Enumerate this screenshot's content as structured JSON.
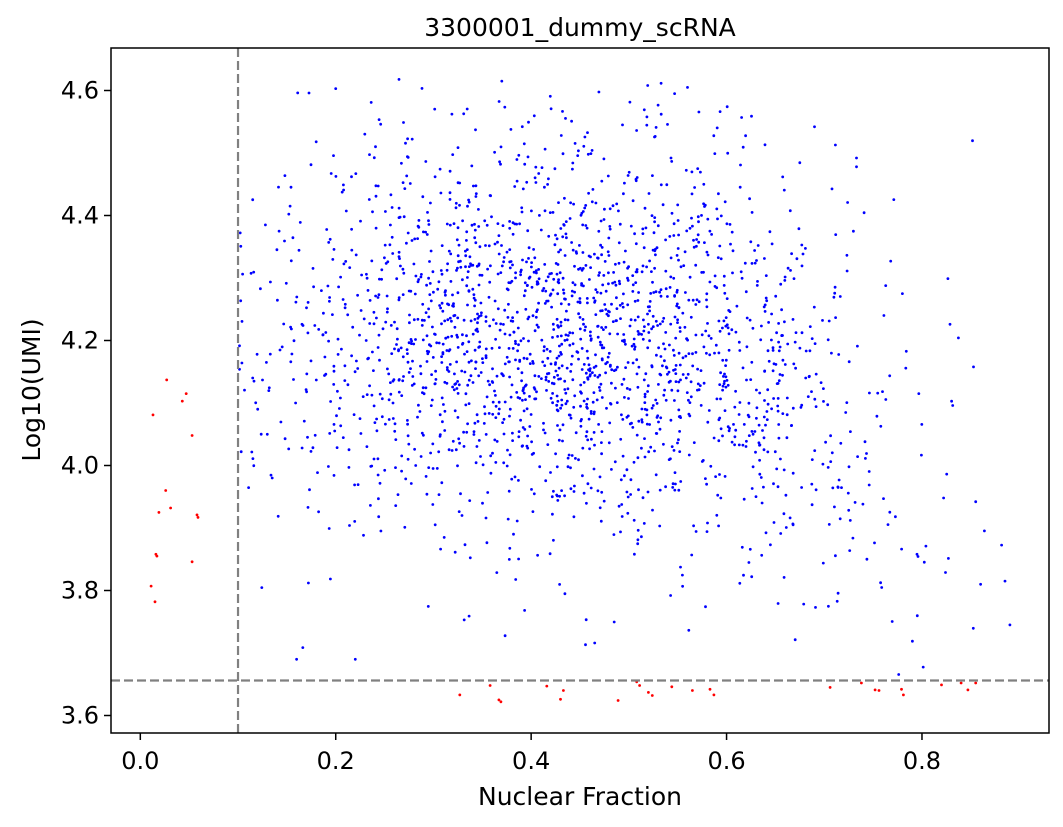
{
  "chart_data": {
    "type": "scatter",
    "title": "3300001_dummy_scRNA",
    "xlabel": "Nuclear Fraction",
    "ylabel": "Log10(UMI)",
    "xlim": [
      -0.03,
      0.93
    ],
    "ylim": [
      3.572,
      4.668
    ],
    "xticks": [
      0.0,
      0.2,
      0.4,
      0.6,
      0.8
    ],
    "xtick_labels": [
      "0.0",
      "0.2",
      "0.4",
      "0.6",
      "0.8"
    ],
    "yticks": [
      3.6,
      3.8,
      4.0,
      4.2,
      4.4,
      4.6
    ],
    "ytick_labels": [
      "3.6",
      "3.8",
      "4.0",
      "4.2",
      "4.4",
      "4.6"
    ],
    "thresholds": {
      "x": 0.1,
      "y": 3.656,
      "color": "#808080",
      "style": "dashed"
    },
    "grid": false,
    "series": [
      {
        "color": "#0000ff",
        "generator": {
          "count": 2150,
          "x_range": [
            0.1,
            0.89
          ],
          "y_range": [
            3.656,
            4.62
          ],
          "x_center": 0.44,
          "y_center": 4.22,
          "seed": 7
        },
        "points": [
          {
            "x": 0.2,
            "y": 4.603
          },
          {
            "x": 0.18,
            "y": 4.518
          },
          {
            "x": 0.37,
            "y": 4.615
          },
          {
            "x": 0.56,
            "y": 4.605
          },
          {
            "x": 0.69,
            "y": 4.542
          },
          {
            "x": 0.733,
            "y": 4.492
          },
          {
            "x": 0.733,
            "y": 4.478
          },
          {
            "x": 0.78,
            "y": 4.275
          },
          {
            "x": 0.768,
            "y": 4.327
          },
          {
            "x": 0.885,
            "y": 3.815
          },
          {
            "x": 0.89,
            "y": 3.745
          },
          {
            "x": 0.86,
            "y": 3.81
          },
          {
            "x": 0.16,
            "y": 3.69
          },
          {
            "x": 0.22,
            "y": 3.69
          },
          {
            "x": 0.128,
            "y": 4.385
          },
          {
            "x": 0.142,
            "y": 4.375
          },
          {
            "x": 0.115,
            "y": 4.14
          },
          {
            "x": 0.13,
            "y": 4.05
          },
          {
            "x": 0.135,
            "y": 3.98
          },
          {
            "x": 0.172,
            "y": 3.812
          }
        ]
      },
      {
        "color": "#ff0000",
        "points": [
          {
            "x": 0.027,
            "y": 4.137
          },
          {
            "x": 0.047,
            "y": 4.115
          },
          {
            "x": 0.043,
            "y": 4.103
          },
          {
            "x": 0.013,
            "y": 4.081
          },
          {
            "x": 0.053,
            "y": 4.048
          },
          {
            "x": 0.026,
            "y": 3.96
          },
          {
            "x": 0.031,
            "y": 3.932
          },
          {
            "x": 0.019,
            "y": 3.925
          },
          {
            "x": 0.058,
            "y": 3.921
          },
          {
            "x": 0.059,
            "y": 3.917
          },
          {
            "x": 0.016,
            "y": 3.858
          },
          {
            "x": 0.017,
            "y": 3.855
          },
          {
            "x": 0.053,
            "y": 3.846
          },
          {
            "x": 0.011,
            "y": 3.807
          },
          {
            "x": 0.015,
            "y": 3.782
          },
          {
            "x": 0.327,
            "y": 3.633
          },
          {
            "x": 0.367,
            "y": 3.625
          },
          {
            "x": 0.369,
            "y": 3.622
          },
          {
            "x": 0.358,
            "y": 3.648
          },
          {
            "x": 0.416,
            "y": 3.647
          },
          {
            "x": 0.433,
            "y": 3.64
          },
          {
            "x": 0.43,
            "y": 3.626
          },
          {
            "x": 0.489,
            "y": 3.624
          },
          {
            "x": 0.508,
            "y": 3.654
          },
          {
            "x": 0.511,
            "y": 3.648
          },
          {
            "x": 0.52,
            "y": 3.637
          },
          {
            "x": 0.524,
            "y": 3.632
          },
          {
            "x": 0.544,
            "y": 3.646
          },
          {
            "x": 0.565,
            "y": 3.64
          },
          {
            "x": 0.583,
            "y": 3.642
          },
          {
            "x": 0.587,
            "y": 3.633
          },
          {
            "x": 0.706,
            "y": 3.645
          },
          {
            "x": 0.738,
            "y": 3.652
          },
          {
            "x": 0.752,
            "y": 3.641
          },
          {
            "x": 0.756,
            "y": 3.64
          },
          {
            "x": 0.779,
            "y": 3.642
          },
          {
            "x": 0.781,
            "y": 3.633
          },
          {
            "x": 0.82,
            "y": 3.649
          },
          {
            "x": 0.84,
            "y": 3.652
          },
          {
            "x": 0.847,
            "y": 3.641
          },
          {
            "x": 0.855,
            "y": 3.652
          }
        ]
      }
    ]
  }
}
